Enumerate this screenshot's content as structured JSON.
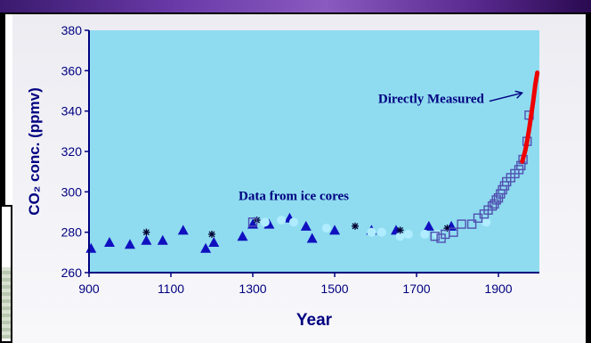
{
  "chart_data": {
    "type": "scatter",
    "title": "",
    "xlabel": "Year",
    "ylabel": "CO₂ conc. (ppmv)",
    "xlim": [
      900,
      2000
    ],
    "ylim": [
      260,
      380
    ],
    "x_ticks": [
      900,
      1100,
      1300,
      1500,
      1700,
      1900
    ],
    "y_ticks": [
      260,
      280,
      300,
      320,
      340,
      360,
      380
    ],
    "grid": false,
    "annotations": [
      {
        "text": "Data from ice cores",
        "x": 1400,
        "y": 296
      },
      {
        "text": "Directly Measured",
        "x": 1865,
        "y": 344
      }
    ],
    "colors": {
      "plot_bg": "#8fdcf0",
      "axis_line": "#000080",
      "triangles": "#1010c0",
      "squares": "#5050b0",
      "circles": "#b0ecff",
      "stars": "#000030",
      "measured": "#ee0000"
    },
    "series": [
      {
        "marker": "triangle",
        "points": [
          [
            905,
            272
          ],
          [
            950,
            275
          ],
          [
            1000,
            274
          ],
          [
            1040,
            276
          ],
          [
            1080,
            276
          ],
          [
            1130,
            281
          ],
          [
            1185,
            272
          ],
          [
            1205,
            275
          ],
          [
            1275,
            278
          ],
          [
            1300,
            284
          ],
          [
            1340,
            284
          ],
          [
            1390,
            287
          ],
          [
            1430,
            283
          ],
          [
            1445,
            277
          ],
          [
            1500,
            281
          ],
          [
            1590,
            281
          ],
          [
            1650,
            281
          ],
          [
            1730,
            283
          ],
          [
            1785,
            283
          ]
        ]
      },
      {
        "marker": "circle",
        "points": [
          [
            1330,
            285
          ],
          [
            1370,
            286
          ],
          [
            1400,
            285
          ],
          [
            1480,
            282
          ],
          [
            1590,
            280
          ],
          [
            1615,
            280
          ],
          [
            1660,
            278
          ],
          [
            1680,
            279
          ],
          [
            1720,
            279
          ],
          [
            1750,
            279
          ],
          [
            1870,
            285
          ]
        ]
      },
      {
        "marker": "star",
        "points": [
          [
            1040,
            280
          ],
          [
            1200,
            279
          ],
          [
            1310,
            286
          ],
          [
            1550,
            283
          ],
          [
            1660,
            281
          ],
          [
            1775,
            282
          ]
        ]
      },
      {
        "marker": "square",
        "points": [
          [
            1300,
            285
          ],
          [
            1745,
            278
          ],
          [
            1760,
            277
          ],
          [
            1770,
            279
          ],
          [
            1790,
            280
          ],
          [
            1810,
            284
          ],
          [
            1835,
            284
          ],
          [
            1850,
            287
          ],
          [
            1865,
            289
          ],
          [
            1875,
            291
          ],
          [
            1885,
            293
          ],
          [
            1890,
            294
          ],
          [
            1895,
            296
          ],
          [
            1900,
            297
          ],
          [
            1905,
            299
          ],
          [
            1910,
            301
          ],
          [
            1915,
            303
          ],
          [
            1920,
            305
          ],
          [
            1930,
            307
          ],
          [
            1940,
            309
          ],
          [
            1950,
            311
          ],
          [
            1955,
            313
          ],
          [
            1960,
            316
          ],
          [
            1970,
            325
          ],
          [
            1975,
            338
          ]
        ]
      },
      {
        "marker": "line",
        "name": "Directly Measured",
        "points": [
          [
            1958,
            315
          ],
          [
            1965,
            320
          ],
          [
            1970,
            325
          ],
          [
            1975,
            331
          ],
          [
            1980,
            338
          ],
          [
            1985,
            345
          ],
          [
            1990,
            353
          ],
          [
            1995,
            359
          ]
        ]
      }
    ]
  }
}
